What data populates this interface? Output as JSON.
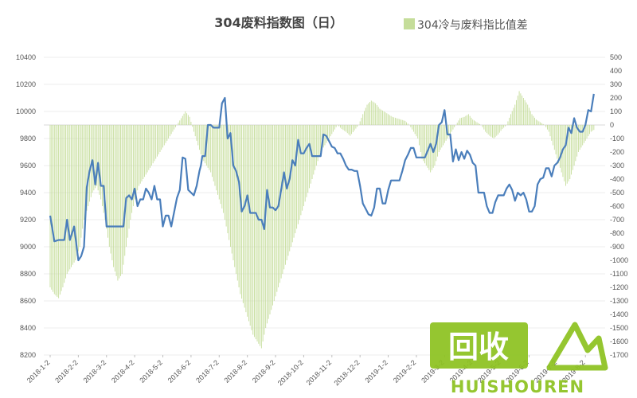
{
  "chart_data": {
    "type": "bar+line",
    "title": "304废料指数图（日）",
    "legend": [
      {
        "name": "304冷与废料指比值差",
        "marker": "square",
        "color": "#c5dd9a"
      }
    ],
    "left_axis": {
      "ylim": [
        8200,
        10400
      ],
      "ticks": [
        8200,
        8400,
        8600,
        8800,
        9000,
        9200,
        9400,
        9600,
        9800,
        10000,
        10200,
        10400
      ]
    },
    "right_axis": {
      "ylim": [
        -1700,
        500
      ],
      "ticks": [
        500,
        400,
        300,
        200,
        100,
        0,
        -100,
        -200,
        -300,
        -400,
        -500,
        -600,
        -700,
        -800,
        -900,
        -1000,
        -1100,
        -1200,
        -1300,
        -1400,
        -1500,
        -1600,
        -1700
      ]
    },
    "x_ticks": [
      "2018-1-2",
      "2018-2-2",
      "2018-3-2",
      "2018-4-2",
      "2018-5-2",
      "2018-6-2",
      "2018-7-2",
      "2018-8-2",
      "2018-9-2",
      "2018-10-2",
      "2018-11-2",
      "2018-12-2",
      "2019-1-2",
      "2019-2-2",
      "2019-3-2",
      "2019-4-2",
      "2019-5-2",
      "2019-6-2",
      "2019-7-2",
      "2019-8-2"
    ],
    "series": [
      {
        "name": "304废料指数",
        "type": "line",
        "axis": "left",
        "color": "#4a7ebb",
        "x": [
          0,
          0.15,
          0.3,
          0.5,
          0.6,
          0.7,
          0.85,
          1.0,
          1.1,
          1.2,
          1.3,
          1.4,
          1.5,
          1.6,
          1.7,
          1.8,
          1.9,
          2.0,
          2.1,
          2.25,
          2.4,
          2.5,
          2.6,
          2.7,
          2.8,
          2.9,
          3.0,
          3.1,
          3.2,
          3.3,
          3.4,
          3.5,
          3.6,
          3.7,
          3.8,
          3.9,
          4.0,
          4.1,
          4.2,
          4.3,
          4.5,
          4.6,
          4.7,
          4.8,
          4.9,
          5.0,
          5.1,
          5.2,
          5.3,
          5.35,
          5.4,
          5.5,
          5.6,
          5.7,
          5.8,
          5.9,
          6.0,
          6.1,
          6.2,
          6.3,
          6.4,
          6.5,
          6.6,
          6.7,
          6.8,
          6.9,
          7.0,
          7.1,
          7.2,
          7.3,
          7.4,
          7.5,
          7.6,
          7.7,
          7.8,
          7.9,
          8.0,
          8.1,
          8.2,
          8.3,
          8.4,
          8.5,
          8.6,
          8.7,
          8.8,
          8.9,
          9.0,
          9.1,
          9.2,
          9.3,
          9.4,
          9.5,
          9.6,
          9.7,
          9.8,
          9.9,
          10.0,
          10.1,
          10.2,
          10.3,
          10.4,
          10.5,
          10.6,
          10.7,
          10.8,
          10.9,
          11.0,
          11.1,
          11.2,
          11.3,
          11.4,
          11.5,
          11.6,
          11.7,
          11.8,
          11.9,
          12.0,
          12.1,
          12.2,
          12.3,
          12.4,
          12.5,
          12.6,
          12.7,
          12.8,
          12.9,
          13.0,
          13.1,
          13.2,
          13.3,
          13.4,
          13.5,
          13.6,
          13.7,
          13.8,
          13.9,
          14.0,
          14.1,
          14.2,
          14.3,
          14.4,
          14.5,
          14.6,
          14.7,
          14.8,
          14.9,
          15.0,
          15.1,
          15.2,
          15.3,
          15.4,
          15.5,
          15.6,
          15.7,
          15.8,
          15.9,
          16.0,
          16.1,
          16.2,
          16.3,
          16.4,
          16.5,
          16.6,
          16.7,
          16.8,
          16.9,
          17.0,
          17.1,
          17.2,
          17.3,
          17.4,
          17.5,
          17.6,
          17.7,
          17.8,
          17.9,
          18.0,
          18.1,
          18.2,
          18.3,
          18.4,
          18.5,
          18.6,
          18.7,
          18.8,
          18.9,
          19.0,
          19.1,
          19.2,
          19.3
        ],
        "values": [
          9230,
          9040,
          9050,
          9050,
          9200,
          9050,
          9150,
          8900,
          8930,
          9000,
          9440,
          9560,
          9640,
          9460,
          9620,
          9450,
          9450,
          9150,
          9150,
          9150,
          9150,
          9150,
          9150,
          9360,
          9380,
          9350,
          9430,
          9300,
          9350,
          9350,
          9430,
          9400,
          9350,
          9450,
          9350,
          9350,
          9150,
          9230,
          9230,
          9150,
          9360,
          9420,
          9660,
          9650,
          9420,
          9400,
          9380,
          9450,
          9560,
          9600,
          9670,
          9670,
          9900,
          9900,
          9880,
          9880,
          9880,
          10060,
          10100,
          9800,
          9840,
          9600,
          9560,
          9480,
          9260,
          9300,
          9380,
          9250,
          9250,
          9250,
          9200,
          9200,
          9130,
          9420,
          9290,
          9290,
          9270,
          9300,
          9420,
          9550,
          9430,
          9500,
          9640,
          9600,
          9790,
          9690,
          9690,
          9730,
          9760,
          9670,
          9670,
          9670,
          9670,
          9830,
          9820,
          9780,
          9740,
          9730,
          9690,
          9690,
          9650,
          9600,
          9570,
          9570,
          9560,
          9560,
          9450,
          9320,
          9280,
          9240,
          9230,
          9290,
          9430,
          9430,
          9320,
          9320,
          9420,
          9490,
          9490,
          9490,
          9490,
          9560,
          9640,
          9680,
          9730,
          9730,
          9660,
          9660,
          9660,
          9660,
          9710,
          9760,
          9700,
          9760,
          9900,
          9920,
          10010,
          9830,
          9830,
          9630,
          9720,
          9640,
          9700,
          9650,
          9710,
          9680,
          9620,
          9600,
          9400,
          9400,
          9400,
          9300,
          9250,
          9250,
          9330,
          9380,
          9380,
          9380,
          9430,
          9460,
          9420,
          9340,
          9400,
          9380,
          9400,
          9350,
          9260,
          9260,
          9300,
          9460,
          9500,
          9510,
          9580,
          9580,
          9520,
          9600,
          9620,
          9660,
          9720,
          9750,
          9880,
          9840,
          9950,
          9880,
          9850,
          9850,
          9900,
          10010,
          10000,
          10130
        ]
      },
      {
        "name": "304冷与废料指比值差",
        "type": "bar",
        "axis": "right",
        "color": "#c5dd9a",
        "x": [
          0,
          0.15,
          0.3,
          0.45,
          0.6,
          0.75,
          0.9,
          1.05,
          1.2,
          1.35,
          1.5,
          1.65,
          1.8,
          1.95,
          2.1,
          2.25,
          2.4,
          2.55,
          2.7,
          2.85,
          3.0,
          3.15,
          3.3,
          3.45,
          3.6,
          3.75,
          3.9,
          4.05,
          4.2,
          4.35,
          4.5,
          4.65,
          4.8,
          4.95,
          5.1,
          5.25,
          5.4,
          5.55,
          5.7,
          5.85,
          6.0,
          6.15,
          6.3,
          6.45,
          6.6,
          6.75,
          6.9,
          7.05,
          7.2,
          7.35,
          7.5,
          7.65,
          7.8,
          7.95,
          8.1,
          8.25,
          8.4,
          8.55,
          8.7,
          8.85,
          9.0,
          9.15,
          9.3,
          9.45,
          9.6,
          9.75,
          9.9,
          10.05,
          10.2,
          10.35,
          10.5,
          10.65,
          10.8,
          10.95,
          11.1,
          11.25,
          11.4,
          11.55,
          11.7,
          11.85,
          12.0,
          12.15,
          12.3,
          12.45,
          12.6,
          12.75,
          12.9,
          13.05,
          13.2,
          13.35,
          13.5,
          13.65,
          13.8,
          13.95,
          14.1,
          14.25,
          14.4,
          14.55,
          14.7,
          14.85,
          15.0,
          15.15,
          15.3,
          15.45,
          15.6,
          15.75,
          15.9,
          16.05,
          16.2,
          16.35,
          16.5,
          16.65,
          16.8,
          16.95,
          17.1,
          17.25,
          17.4,
          17.55,
          17.7,
          17.85,
          18.0,
          18.15,
          18.3,
          18.45,
          18.6,
          18.75,
          18.9,
          19.05,
          19.2,
          19.35
        ],
        "values": [
          -1200,
          -1250,
          -1280,
          -1200,
          -1100,
          -1050,
          -1000,
          -900,
          -700,
          -600,
          -500,
          -450,
          -550,
          -700,
          -900,
          -1050,
          -1150,
          -1100,
          -900,
          -700,
          -550,
          -450,
          -400,
          -350,
          -300,
          -250,
          -200,
          -150,
          -100,
          -50,
          0,
          50,
          100,
          60,
          -50,
          -150,
          -250,
          -300,
          -350,
          -450,
          -550,
          -650,
          -800,
          -950,
          -1100,
          -1250,
          -1350,
          -1450,
          -1550,
          -1600,
          -1650,
          -1500,
          -1400,
          -1300,
          -1200,
          -1100,
          -1000,
          -900,
          -800,
          -700,
          -600,
          -500,
          -400,
          -300,
          -200,
          -150,
          -100,
          -50,
          0,
          -30,
          -50,
          -80,
          -40,
          0,
          80,
          150,
          180,
          160,
          120,
          100,
          80,
          60,
          50,
          40,
          30,
          0,
          -50,
          -100,
          -250,
          -300,
          -350,
          -300,
          -200,
          -150,
          -100,
          -50,
          0,
          50,
          60,
          80,
          40,
          20,
          0,
          -50,
          -80,
          -100,
          -70,
          -30,
          0,
          80,
          150,
          250,
          200,
          150,
          80,
          40,
          20,
          0,
          -50,
          -150,
          -250,
          -350,
          -450,
          -400,
          -300,
          -200,
          -150,
          -100,
          -50,
          -30
        ]
      }
    ],
    "watermark": {
      "cn": "回收",
      "en": "HUISHOUREN"
    }
  }
}
